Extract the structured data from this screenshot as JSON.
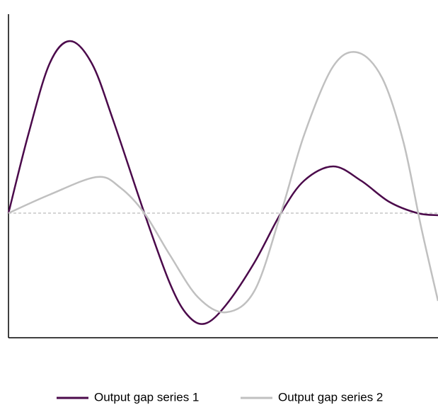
{
  "chart_data": {
    "type": "line",
    "xlim": [
      0,
      6.07
    ],
    "ylim": [
      -1.76,
      2.81
    ],
    "reference_line": 0,
    "legend": "bottom",
    "series": [
      {
        "name": "Output gap series 1",
        "color": "#4b0a4b",
        "x": [
          0,
          0.28,
          0.58,
          0.87,
          1.18,
          1.48,
          1.92,
          2.28,
          2.53,
          2.78,
          3.08,
          3.48,
          3.85,
          4.18,
          4.59,
          4.98,
          5.38,
          5.78,
          6.07
        ],
        "values": [
          0,
          1.11,
          2.11,
          2.43,
          2.11,
          1.31,
          0,
          -0.99,
          -1.44,
          -1.56,
          -1.29,
          -0.69,
          0,
          0.46,
          0.66,
          0.46,
          0.16,
          0,
          -0.03
        ]
      },
      {
        "name": "Output gap series 2",
        "color": "#c0c0c0",
        "x": [
          0,
          0.58,
          1.25,
          1.58,
          1.92,
          2.28,
          2.68,
          3.08,
          3.48,
          3.85,
          4.18,
          4.58,
          4.93,
          5.28,
          5.58,
          5.83,
          6.07
        ],
        "values": [
          0,
          0.26,
          0.51,
          0.36,
          0,
          -0.59,
          -1.19,
          -1.4,
          -1.09,
          0,
          1.11,
          2.06,
          2.27,
          1.91,
          1.01,
          -0.19,
          -1.24
        ]
      }
    ]
  }
}
